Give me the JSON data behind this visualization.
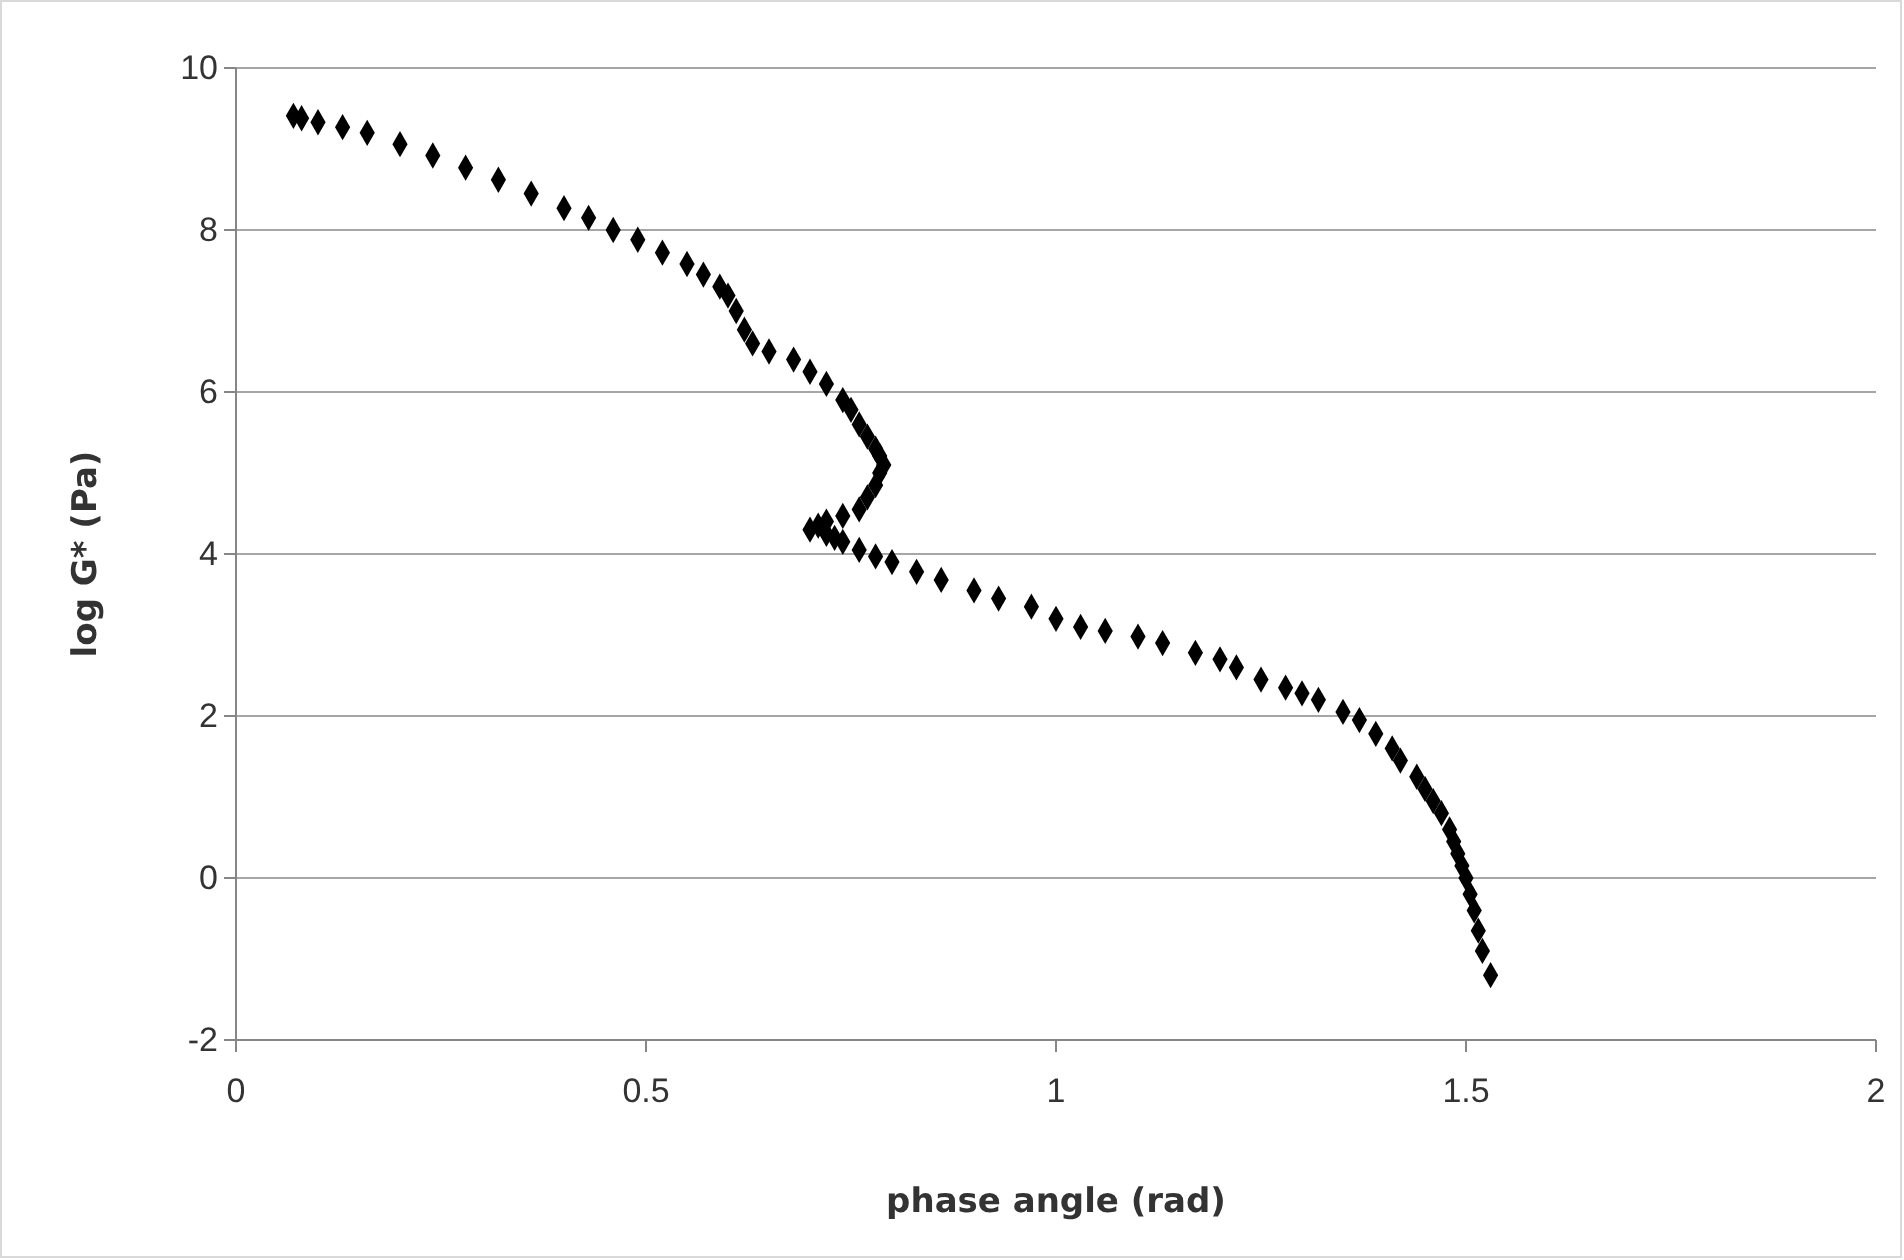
{
  "chart_data": {
    "type": "scatter",
    "xlabel": "phase angle (rad)",
    "ylabel": "log G* (Pa)",
    "xlim": [
      0,
      2
    ],
    "xticks": [
      0,
      0.5,
      1,
      1.5,
      2
    ],
    "ylim": [
      -2,
      10
    ],
    "yticks": [
      -2,
      0,
      2,
      4,
      6,
      8,
      10
    ],
    "grid": "y",
    "marker": "diamond",
    "x": [
      0.07,
      0.08,
      0.1,
      0.13,
      0.16,
      0.2,
      0.24,
      0.28,
      0.32,
      0.36,
      0.4,
      0.43,
      0.46,
      0.49,
      0.52,
      0.55,
      0.57,
      0.59,
      0.6,
      0.61,
      0.62,
      0.63,
      0.65,
      0.68,
      0.7,
      0.72,
      0.74,
      0.75,
      0.76,
      0.77,
      0.78,
      0.785,
      0.79,
      0.785,
      0.78,
      0.77,
      0.76,
      0.74,
      0.72,
      0.71,
      0.7,
      0.72,
      0.73,
      0.74,
      0.76,
      0.78,
      0.8,
      0.83,
      0.86,
      0.9,
      0.93,
      0.97,
      1.0,
      1.03,
      1.06,
      1.1,
      1.13,
      1.17,
      1.2,
      1.22,
      1.25,
      1.28,
      1.3,
      1.32,
      1.35,
      1.37,
      1.39,
      1.41,
      1.42,
      1.44,
      1.45,
      1.46,
      1.47,
      1.48,
      1.485,
      1.49,
      1.495,
      1.5,
      1.505,
      1.51,
      1.515,
      1.52,
      1.53
    ],
    "series": [
      {
        "color": "#000000",
        "values": [
          9.41,
          9.38,
          9.33,
          9.27,
          9.2,
          9.06,
          8.92,
          8.77,
          8.62,
          8.45,
          8.27,
          8.15,
          8.0,
          7.88,
          7.72,
          7.58,
          7.45,
          7.3,
          7.19,
          7.0,
          6.77,
          6.6,
          6.5,
          6.4,
          6.25,
          6.1,
          5.9,
          5.78,
          5.6,
          5.45,
          5.3,
          5.21,
          5.1,
          5.0,
          4.85,
          4.7,
          4.55,
          4.47,
          4.4,
          4.35,
          4.3,
          4.25,
          4.2,
          4.15,
          4.05,
          3.97,
          3.9,
          3.78,
          3.68,
          3.55,
          3.45,
          3.35,
          3.2,
          3.1,
          3.05,
          2.98,
          2.9,
          2.78,
          2.7,
          2.6,
          2.45,
          2.35,
          2.28,
          2.2,
          2.05,
          1.95,
          1.78,
          1.6,
          1.45,
          1.25,
          1.1,
          0.95,
          0.8,
          0.6,
          0.45,
          0.3,
          0.15,
          0.0,
          -0.2,
          -0.4,
          -0.65,
          -0.9,
          -1.2
        ]
      }
    ]
  }
}
